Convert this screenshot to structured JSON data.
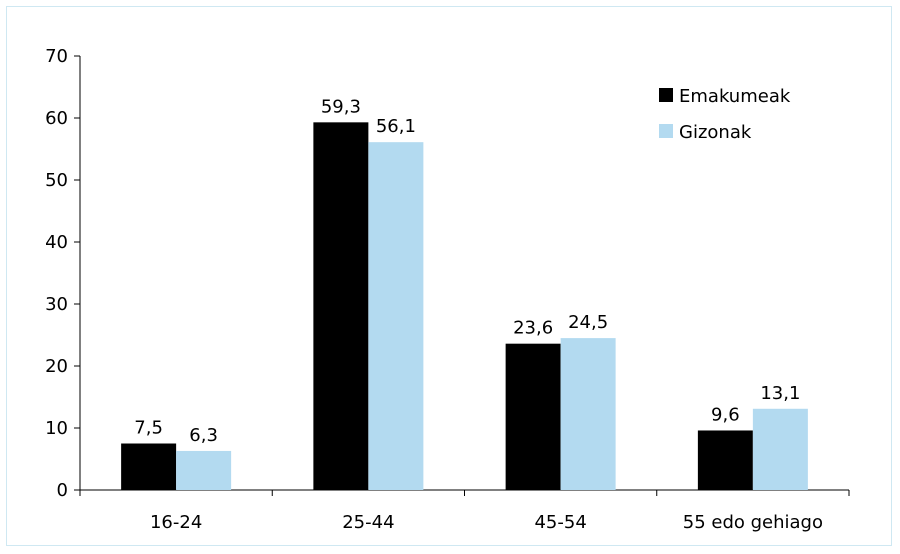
{
  "chart_data": {
    "type": "bar",
    "categories": [
      "16-24",
      "25-44",
      "45-54",
      "55 edo gehiago"
    ],
    "series": [
      {
        "name": "Emakumeak",
        "color": "#000000",
        "values": [
          7.5,
          59.3,
          23.6,
          9.6
        ],
        "labels": [
          "7,5",
          "59,3",
          "23,6",
          "9,6"
        ]
      },
      {
        "name": "Gizonak",
        "color": "#b3daf0",
        "values": [
          6.3,
          56.1,
          24.5,
          13.1
        ],
        "labels": [
          "6,3",
          "56,1",
          "24,5",
          "13,1"
        ]
      }
    ],
    "ylim": [
      0,
      70
    ],
    "yticks": [
      "0",
      "10",
      "20",
      "30",
      "40",
      "50",
      "60",
      "70"
    ],
    "legend_position": "top-right",
    "grid": false
  }
}
